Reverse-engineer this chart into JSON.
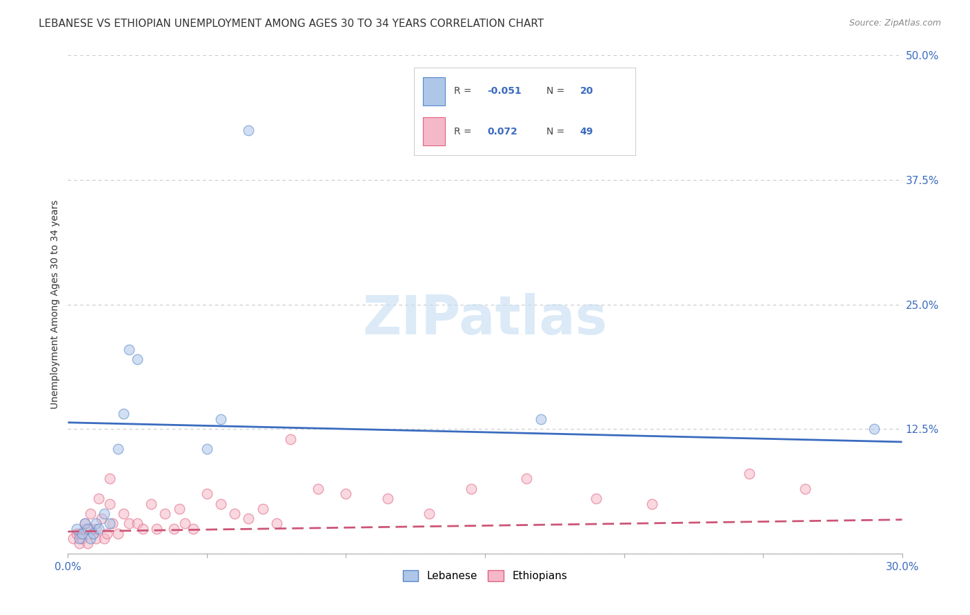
{
  "title": "LEBANESE VS ETHIOPIAN UNEMPLOYMENT AMONG AGES 30 TO 34 YEARS CORRELATION CHART",
  "source": "Source: ZipAtlas.com",
  "ylabel": "Unemployment Among Ages 30 to 34 years",
  "xlim": [
    0.0,
    0.3
  ],
  "ylim": [
    0.0,
    0.5
  ],
  "xticks": [
    0.0,
    0.05,
    0.1,
    0.15,
    0.2,
    0.25,
    0.3
  ],
  "xticklabels": [
    "0.0%",
    "",
    "",
    "",
    "",
    "",
    "30.0%"
  ],
  "yticks": [
    0.0,
    0.125,
    0.25,
    0.375,
    0.5
  ],
  "yticklabels": [
    "",
    "12.5%",
    "25.0%",
    "37.5%",
    "50.0%"
  ],
  "watermark": "ZIPatlas",
  "lebanese_color": "#aec6e8",
  "ethiopian_color": "#f5b8c8",
  "lebanese_edge_color": "#5588cc",
  "ethiopian_edge_color": "#e06080",
  "lebanese_line_color": "#3a6bbf",
  "ethiopian_line_color": "#cc5577",
  "lebanese_R": -0.051,
  "lebanese_N": 20,
  "ethiopian_R": 0.072,
  "ethiopian_N": 49,
  "lebanese_x": [
    0.003,
    0.004,
    0.005,
    0.006,
    0.007,
    0.008,
    0.009,
    0.01,
    0.011,
    0.013,
    0.015,
    0.018,
    0.02,
    0.022,
    0.025,
    0.05,
    0.055,
    0.065,
    0.17,
    0.29
  ],
  "lebanese_y": [
    0.025,
    0.015,
    0.02,
    0.03,
    0.025,
    0.015,
    0.02,
    0.03,
    0.025,
    0.04,
    0.03,
    0.105,
    0.14,
    0.205,
    0.195,
    0.105,
    0.135,
    0.425,
    0.135,
    0.125
  ],
  "ethiopian_x": [
    0.002,
    0.003,
    0.004,
    0.004,
    0.005,
    0.006,
    0.006,
    0.007,
    0.008,
    0.008,
    0.009,
    0.01,
    0.01,
    0.011,
    0.012,
    0.013,
    0.014,
    0.015,
    0.015,
    0.016,
    0.018,
    0.02,
    0.022,
    0.025,
    0.027,
    0.03,
    0.032,
    0.035,
    0.038,
    0.04,
    0.042,
    0.045,
    0.05,
    0.055,
    0.06,
    0.065,
    0.07,
    0.075,
    0.08,
    0.09,
    0.1,
    0.115,
    0.13,
    0.145,
    0.165,
    0.19,
    0.21,
    0.245,
    0.265
  ],
  "ethiopian_y": [
    0.015,
    0.02,
    0.01,
    0.02,
    0.015,
    0.025,
    0.03,
    0.01,
    0.025,
    0.04,
    0.02,
    0.015,
    0.025,
    0.055,
    0.035,
    0.015,
    0.02,
    0.075,
    0.05,
    0.03,
    0.02,
    0.04,
    0.03,
    0.03,
    0.025,
    0.05,
    0.025,
    0.04,
    0.025,
    0.045,
    0.03,
    0.025,
    0.06,
    0.05,
    0.04,
    0.035,
    0.045,
    0.03,
    0.115,
    0.065,
    0.06,
    0.055,
    0.04,
    0.065,
    0.075,
    0.055,
    0.05,
    0.08,
    0.065
  ],
  "leb_line_x0": 0.0,
  "leb_line_y0": 0.1315,
  "leb_line_x1": 0.3,
  "leb_line_y1": 0.112,
  "eth_line_x0": 0.0,
  "eth_line_y0": 0.022,
  "eth_line_x1": 0.3,
  "eth_line_y1": 0.034,
  "grid_color": "#c8c8c8",
  "background_color": "#ffffff",
  "title_fontsize": 11,
  "source_fontsize": 9,
  "axis_label_fontsize": 10,
  "tick_fontsize": 11,
  "marker_size": 110,
  "marker_alpha": 0.55,
  "line_width": 2.0
}
